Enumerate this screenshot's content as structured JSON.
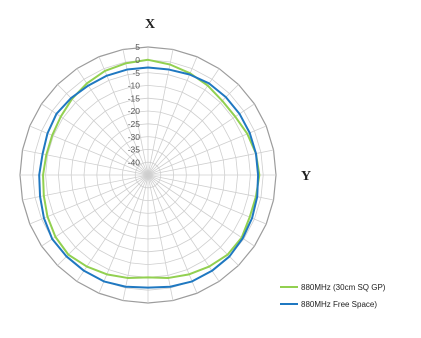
{
  "chart_data": {
    "type": "radar",
    "direction_labels": {
      "top": "X",
      "right": "Y"
    },
    "radial_ticks": [
      "5",
      "0",
      "-5",
      "-10",
      "-15",
      "-20",
      "-25",
      "-30",
      "-35",
      "-40"
    ],
    "radial_range": [
      -45,
      5
    ],
    "radial_step": 5,
    "angle_count": 32,
    "grid": true,
    "legend_position": "bottom-right",
    "series": [
      {
        "name": "880MHz (30cm SQ GP)",
        "color": "#92D050",
        "values": [
          0,
          -1,
          -2,
          -3,
          -4,
          -4,
          -3,
          -2,
          -1.5,
          -2,
          -2,
          -1,
          -1,
          -2,
          -3,
          -4,
          -5,
          -4,
          -3,
          -2,
          -1,
          -1.5,
          -2.5,
          -3.5,
          -4,
          -4.5,
          -4.5,
          -4,
          -3,
          -2,
          -1,
          -0.5
        ]
      },
      {
        "name": "880MHz  Free Space)",
        "color": "#1F78C1",
        "values": [
          -3,
          -3,
          -2.5,
          -2,
          -2,
          -2,
          -2,
          -2,
          -2,
          -1.5,
          -1,
          -0.5,
          0,
          0,
          0,
          -0.5,
          -1,
          -0.5,
          0,
          0,
          0,
          0,
          -1,
          -2,
          -2.5,
          -3,
          -2.5,
          -2,
          -2.5,
          -3,
          -3,
          -3
        ]
      }
    ]
  }
}
